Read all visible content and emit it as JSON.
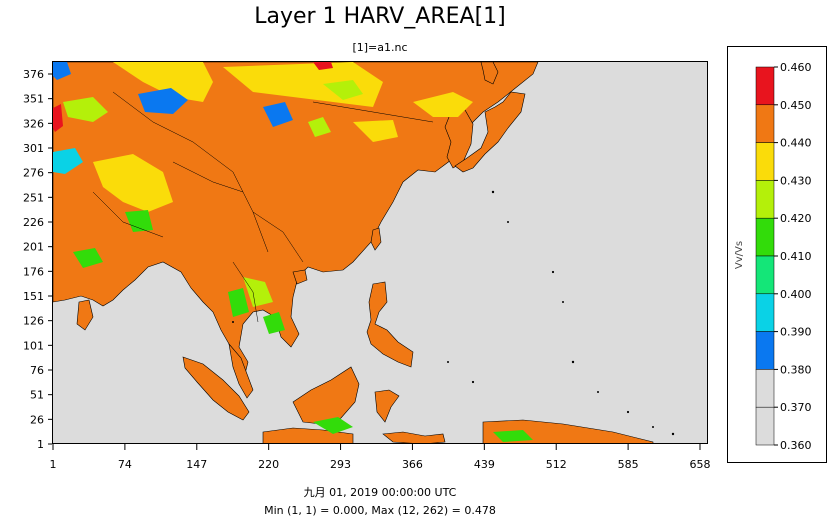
{
  "title": "Layer 1 HARV_AREA[1]",
  "subtitle": "[1]=a1.nc",
  "footer": {
    "date": "九月 01, 2019 00:00:00 UTC",
    "stats": "Min (1, 1) = 0.000, Max (12, 262) = 0.478"
  },
  "axes": {
    "y_ticks": [
      "1",
      "26",
      "51",
      "76",
      "101",
      "126",
      "151",
      "176",
      "201",
      "226",
      "251",
      "276",
      "301",
      "326",
      "351",
      "376"
    ],
    "x_ticks": [
      "1",
      "74",
      "147",
      "220",
      "293",
      "366",
      "439",
      "512",
      "585",
      "658"
    ]
  },
  "legend": {
    "unit": "Vv/Vs",
    "ticks": [
      "0.460",
      "0.450",
      "0.440",
      "0.430",
      "0.420",
      "0.410",
      "0.400",
      "0.390",
      "0.380",
      "0.370",
      "0.360"
    ],
    "colors": [
      "#e8141e",
      "#f07814",
      "#fadc0a",
      "#b4f00a",
      "#32dc0a",
      "#14e678",
      "#0ad2e6",
      "#0a78f0",
      "#dcdcdc"
    ]
  },
  "palette": {
    "ocean": "#dcdcdc",
    "land_main": "#f07814",
    "yellow": "#fadc0a",
    "lime": "#b4f00a",
    "green": "#32dc0a",
    "cyan": "#0ad2e6",
    "blue": "#0a78f0",
    "red": "#e8141e"
  }
}
